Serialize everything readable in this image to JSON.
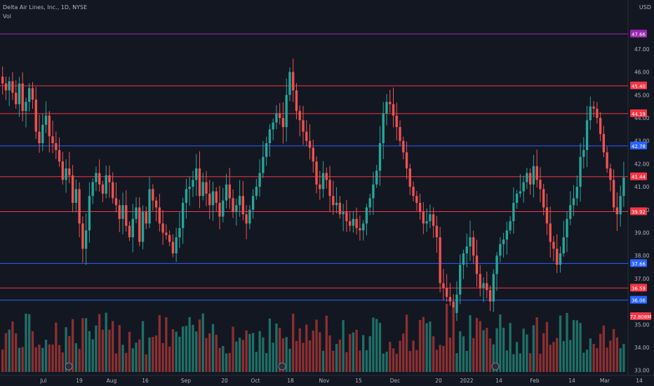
{
  "header": {
    "symbol_line": "Delta Air Lines, Inc., 1D, NYSE",
    "volume_label": "Vol"
  },
  "currency": "USD",
  "colors": {
    "background": "#131722",
    "up": "#26a69a",
    "down": "#ef5350",
    "vol_up": "#1f6f66",
    "vol_down": "#8b2f31",
    "axis_text": "#b2b5be",
    "red_line": "#f23645",
    "blue_line": "#2962ff",
    "purple_line": "#9c27b0"
  },
  "price_axis_labels": [
    "47.00",
    "46.00",
    "45.00",
    "44.00",
    "43.00",
    "42.00",
    "41.00",
    "40.00",
    "39.00",
    "38.00",
    "37.00",
    "35.00",
    "34.00",
    "33.00"
  ],
  "time_axis_labels": [
    "Jul",
    "19",
    "Aug",
    "16",
    "Sep",
    "20",
    "Oct",
    "18",
    "Nov",
    "15",
    "Dec",
    "20",
    "2022",
    "14",
    "Feb",
    "14",
    "Mar",
    "14"
  ],
  "horizontal_levels": [
    {
      "price": "47.66",
      "color": "purple"
    },
    {
      "price": "45.40",
      "color": "red"
    },
    {
      "price": "44.19",
      "color": "red"
    },
    {
      "price": "42.78",
      "color": "blue"
    },
    {
      "price": "41.44",
      "color": "red"
    },
    {
      "price": "39.92",
      "color": "red"
    },
    {
      "price": "37.66",
      "color": "blue"
    },
    {
      "price": "36.59",
      "color": "red"
    },
    {
      "price": "36.06",
      "color": "blue"
    }
  ],
  "last_price_tag": "72.808M",
  "chart_data": {
    "type": "candlestick",
    "ylim": [
      32.9,
      48.0
    ],
    "candles_close": [
      45.5,
      45.2,
      45.6,
      45.1,
      44.6,
      45.5,
      44.3,
      44.7,
      45.3,
      44.8,
      43.4,
      42.9,
      43.7,
      44.1,
      43.2,
      42.9,
      42.6,
      42.1,
      41.3,
      41.8,
      41.5,
      40.3,
      40.9,
      39.4,
      38.3,
      39.1,
      40.6,
      41.2,
      41.6,
      41.1,
      40.7,
      41.5,
      41.2,
      40.5,
      40.2,
      39.6,
      40.2,
      39.3,
      38.8,
      39.6,
      40.1,
      38.6,
      39.9,
      39.4,
      40.9,
      40.4,
      40.1,
      39.4,
      39.0,
      38.9,
      38.6,
      38.1,
      38.8,
      39.2,
      40.3,
      40.9,
      41.0,
      41.3,
      41.8,
      40.6,
      41.2,
      40.7,
      40.2,
      40.8,
      40.3,
      39.7,
      40.4,
      41.1,
      40.5,
      39.9,
      40.2,
      40.6,
      39.8,
      39.4,
      40.0,
      40.6,
      41.0,
      41.6,
      42.3,
      42.9,
      43.5,
      43.8,
      44.2,
      44.0,
      43.6,
      45.0,
      46.0,
      45.2,
      44.3,
      43.9,
      43.4,
      43.0,
      42.7,
      42.1,
      41.1,
      40.9,
      41.6,
      41.3,
      40.6,
      40.2,
      40.3,
      39.8,
      39.9,
      39.5,
      39.3,
      39.6,
      39.2,
      39.1,
      39.4,
      40.1,
      40.5,
      41.1,
      41.7,
      42.9,
      44.2,
      44.7,
      44.6,
      44.1,
      43.6,
      43.0,
      42.5,
      41.8,
      41.0,
      40.6,
      40.3,
      39.9,
      39.4,
      39.5,
      39.8,
      39.3,
      38.8,
      36.8,
      36.6,
      36.2,
      36.0,
      35.5,
      36.3,
      37.6,
      38.1,
      38.4,
      38.8,
      38.0,
      37.2,
      36.6,
      36.8,
      36.5,
      36.0,
      37.2,
      38.0,
      38.5,
      38.7,
      39.1,
      39.5,
      40.3,
      40.7,
      40.8,
      41.2,
      41.6,
      41.1,
      41.9,
      41.3,
      40.9,
      40.1,
      39.4,
      38.6,
      38.3,
      37.6,
      38.1,
      38.8,
      39.6,
      40.2,
      40.5,
      41.0,
      42.3,
      42.6,
      43.9,
      44.5,
      44.4,
      44.0,
      43.3,
      42.5,
      41.8,
      41.3,
      40.1,
      39.8,
      40.6,
      41.4
    ]
  }
}
